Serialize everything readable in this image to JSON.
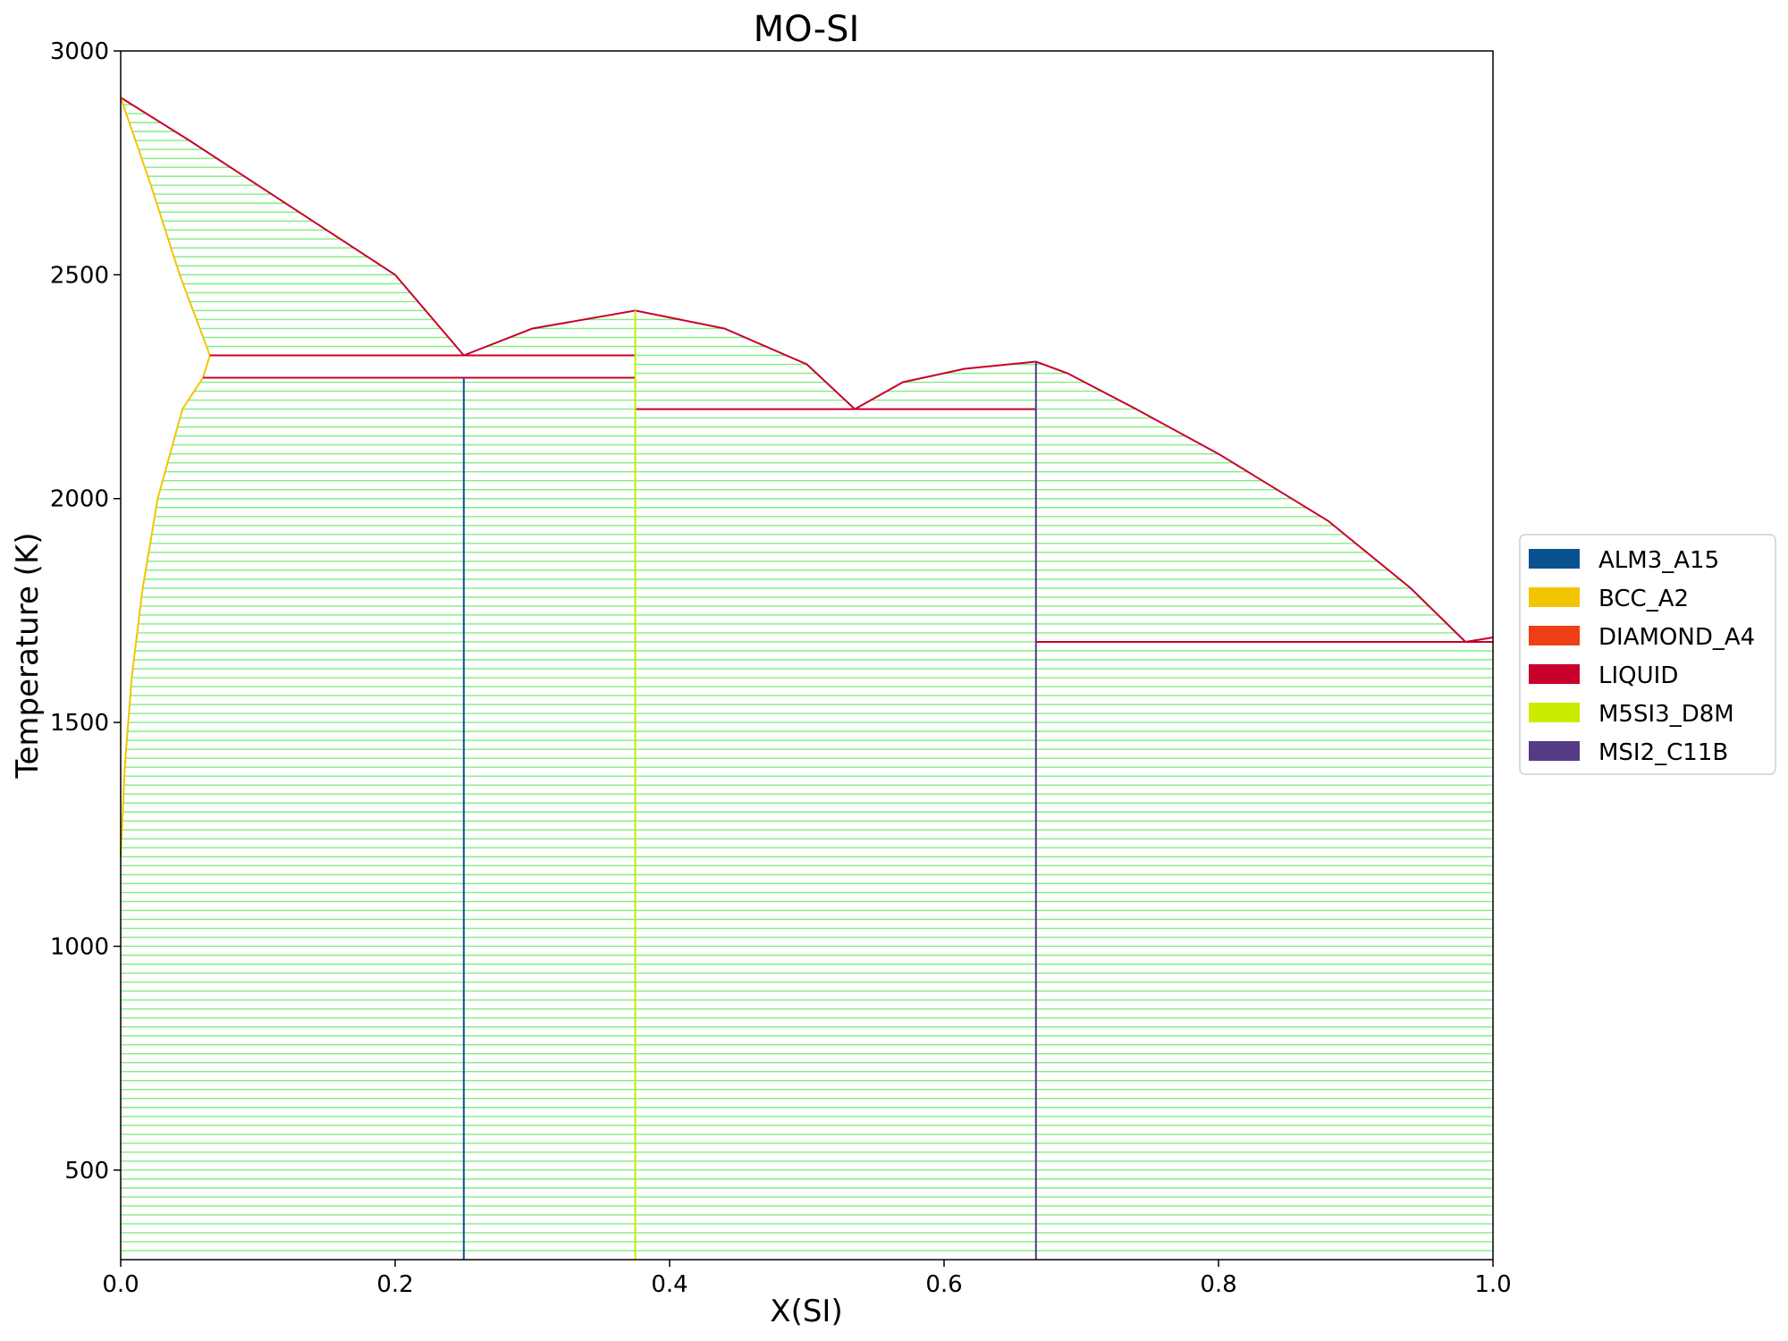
{
  "chart_data": {
    "type": "line",
    "title": "MO-SI",
    "xlabel": "X(SI)",
    "ylabel": "Temperature (K)",
    "xlim": [
      0.0,
      1.0
    ],
    "ylim": [
      300,
      3000
    ],
    "xticks": [
      "0.0",
      "0.2",
      "0.4",
      "0.6",
      "0.8",
      "1.0"
    ],
    "xtick_values": [
      0.0,
      0.2,
      0.4,
      0.6,
      0.8,
      1.0
    ],
    "yticks": [
      "500",
      "1000",
      "1500",
      "2000",
      "2500",
      "3000"
    ],
    "ytick_values": [
      500,
      1000,
      1500,
      2000,
      2500,
      3000
    ],
    "grid": false,
    "legend_placement": "right",
    "tieline_color": "#7fef7f",
    "tieline_temperature_step_K": 20,
    "legend": [
      {
        "label": "ALM3_A15",
        "color": "#0a5190"
      },
      {
        "label": "BCC_A2",
        "color": "#f2c500"
      },
      {
        "label": "DIAMOND_A4",
        "color": "#ef3d14"
      },
      {
        "label": "LIQUID",
        "color": "#c8002b"
      },
      {
        "label": "M5SI3_D8M",
        "color": "#cbeb00"
      },
      {
        "label": "MSI2_C11B",
        "color": "#553a85"
      }
    ],
    "two_phase_regions": [
      {
        "name": "liquid+bcc",
        "left_phase": "BCC_A2",
        "right_phase": "LIQUID",
        "T_range": [
          2320,
          2896
        ],
        "left": [
          [
            2320,
            0.065
          ],
          [
            2500,
            0.043
          ],
          [
            2700,
            0.022
          ],
          [
            2896,
            0.0
          ]
        ],
        "right": [
          [
            2320,
            0.25
          ],
          [
            2500,
            0.2
          ],
          [
            2700,
            0.1
          ],
          [
            2800,
            0.05
          ],
          [
            2896,
            0.0
          ]
        ]
      },
      {
        "name": "liquid+m5si3-left",
        "left_phase": "LIQUID",
        "right_phase": "M5SI3_D8M",
        "T_range": [
          2320,
          2420
        ],
        "left": [
          [
            2320,
            0.25
          ],
          [
            2380,
            0.3
          ],
          [
            2420,
            0.375
          ]
        ],
        "right": [
          [
            2320,
            0.375
          ],
          [
            2420,
            0.375
          ]
        ]
      },
      {
        "name": "liquid+m5si3-right",
        "left_phase": "M5SI3_D8M",
        "right_phase": "LIQUID",
        "T_range": [
          2200,
          2420
        ],
        "left": [
          [
            2200,
            0.375
          ],
          [
            2420,
            0.375
          ]
        ],
        "right": [
          [
            2200,
            0.535
          ],
          [
            2300,
            0.5
          ],
          [
            2380,
            0.44
          ],
          [
            2420,
            0.375
          ]
        ]
      },
      {
        "name": "liquid+msi2-left",
        "left_phase": "LIQUID",
        "right_phase": "MSI2_C11B",
        "T_range": [
          2200,
          2306
        ],
        "left": [
          [
            2200,
            0.535
          ],
          [
            2260,
            0.57
          ],
          [
            2290,
            0.615
          ],
          [
            2306,
            0.667
          ]
        ],
        "right": [
          [
            2200,
            0.667
          ],
          [
            2306,
            0.667
          ]
        ]
      },
      {
        "name": "liquid+msi2-right",
        "left_phase": "MSI2_C11B",
        "right_phase": "LIQUID",
        "T_range": [
          1680,
          2306
        ],
        "left": [
          [
            1680,
            0.667
          ],
          [
            2306,
            0.667
          ]
        ],
        "right": [
          [
            1680,
            0.98
          ],
          [
            1800,
            0.94
          ],
          [
            1950,
            0.88
          ],
          [
            2100,
            0.8
          ],
          [
            2200,
            0.74
          ],
          [
            2280,
            0.69
          ],
          [
            2306,
            0.667
          ]
        ]
      },
      {
        "name": "bcc+alm3",
        "left_phase": "BCC_A2",
        "right_phase": "ALM3_A15",
        "T_range": [
          300,
          2270
        ],
        "left": [
          [
            300,
            0.0
          ],
          [
            1200,
            0.0
          ],
          [
            1400,
            0.003
          ],
          [
            1600,
            0.008
          ],
          [
            1800,
            0.016
          ],
          [
            2000,
            0.027
          ],
          [
            2200,
            0.045
          ],
          [
            2270,
            0.06
          ]
        ],
        "right": [
          [
            300,
            0.25
          ],
          [
            2270,
            0.25
          ]
        ]
      },
      {
        "name": "alm3+m5si3",
        "left_phase": "ALM3_A15",
        "right_phase": "M5SI3_D8M",
        "T_range": [
          300,
          2270
        ],
        "left": [
          [
            300,
            0.25
          ],
          [
            2270,
            0.25
          ]
        ],
        "right": [
          [
            300,
            0.375
          ],
          [
            2270,
            0.375
          ]
        ]
      },
      {
        "name": "m5si3+msi2",
        "left_phase": "M5SI3_D8M",
        "right_phase": "MSI2_C11B",
        "T_range": [
          300,
          2200
        ],
        "left": [
          [
            300,
            0.375
          ],
          [
            2200,
            0.375
          ]
        ],
        "right": [
          [
            300,
            0.667
          ],
          [
            2200,
            0.667
          ]
        ]
      },
      {
        "name": "msi2+diamond",
        "left_phase": "MSI2_C11B",
        "right_phase": "DIAMOND_A4",
        "T_range": [
          300,
          1680
        ],
        "left": [
          [
            300,
            0.667
          ],
          [
            1680,
            0.667
          ]
        ],
        "right": [
          [
            300,
            1.0
          ],
          [
            1680,
            1.0
          ]
        ]
      }
    ],
    "phase_boundaries": [
      {
        "phase": "LIQUID",
        "points": [
          [
            0.0,
            2896
          ],
          [
            0.05,
            2800
          ],
          [
            0.1,
            2700
          ],
          [
            0.2,
            2500
          ],
          [
            0.25,
            2320
          ]
        ]
      },
      {
        "phase": "LIQUID",
        "points": [
          [
            0.25,
            2320
          ],
          [
            0.3,
            2380
          ],
          [
            0.375,
            2420
          ],
          [
            0.44,
            2380
          ],
          [
            0.5,
            2300
          ],
          [
            0.535,
            2200
          ]
        ]
      },
      {
        "phase": "LIQUID",
        "points": [
          [
            0.535,
            2200
          ],
          [
            0.57,
            2260
          ],
          [
            0.615,
            2290
          ],
          [
            0.667,
            2306
          ],
          [
            0.69,
            2280
          ],
          [
            0.74,
            2200
          ],
          [
            0.8,
            2100
          ],
          [
            0.88,
            1950
          ],
          [
            0.94,
            1800
          ],
          [
            0.98,
            1680
          ],
          [
            1.0,
            1690
          ]
        ]
      },
      {
        "phase": "BCC_A2",
        "points": [
          [
            0.0,
            2896
          ],
          [
            0.022,
            2700
          ],
          [
            0.043,
            2500
          ],
          [
            0.065,
            2320
          ]
        ]
      },
      {
        "phase": "BCC_A2",
        "points": [
          [
            0.065,
            2320
          ],
          [
            0.06,
            2270
          ],
          [
            0.045,
            2200
          ],
          [
            0.027,
            2000
          ],
          [
            0.016,
            1800
          ],
          [
            0.008,
            1600
          ],
          [
            0.003,
            1400
          ],
          [
            0.0,
            1200
          ]
        ]
      },
      {
        "phase": "LIQUID",
        "points": [
          [
            0.065,
            2320
          ],
          [
            0.375,
            2320
          ]
        ]
      },
      {
        "phase": "LIQUID",
        "points": [
          [
            0.06,
            2270
          ],
          [
            0.375,
            2270
          ]
        ]
      },
      {
        "phase": "LIQUID",
        "points": [
          [
            0.375,
            2200
          ],
          [
            0.667,
            2200
          ]
        ]
      },
      {
        "phase": "LIQUID",
        "points": [
          [
            0.667,
            1680
          ],
          [
            1.0,
            1680
          ]
        ]
      },
      {
        "phase": "ALM3_A15",
        "points": [
          [
            0.25,
            300
          ],
          [
            0.25,
            2270
          ]
        ]
      },
      {
        "phase": "M5SI3_D8M",
        "points": [
          [
            0.375,
            300
          ],
          [
            0.375,
            2420
          ]
        ]
      },
      {
        "phase": "MSI2_C11B",
        "points": [
          [
            0.667,
            300
          ],
          [
            0.667,
            2306
          ]
        ]
      }
    ]
  }
}
